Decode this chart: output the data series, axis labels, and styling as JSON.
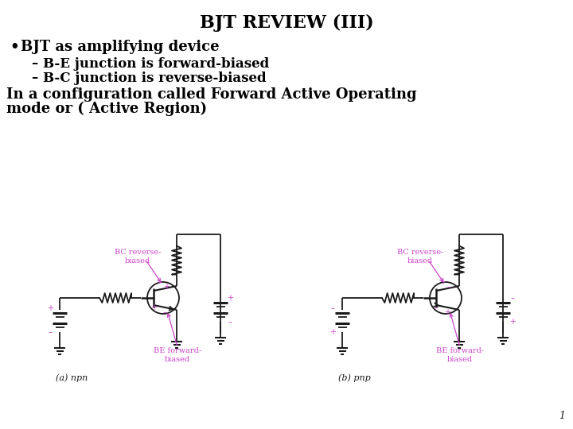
{
  "title": "BJT REVIEW (III)",
  "bullet1": "BJT as amplifying device",
  "sub1": "– B-E junction is forward-biased",
  "sub2": "– B-C junction is reverse-biased",
  "body1": "In a configuration called Forward Active Operating",
  "body2": "mode or ( Active Region)",
  "label_npn": "(a) npn",
  "label_pnp": "(b) pnp",
  "page_num": "1",
  "bg_color": "#ffffff",
  "text_color": "#000000",
  "magenta": "#cc44cc",
  "circuit_color": "#1a1a1a",
  "title_fontsize": 16,
  "bullet_fontsize": 13,
  "sub_fontsize": 12,
  "body_fontsize": 13
}
